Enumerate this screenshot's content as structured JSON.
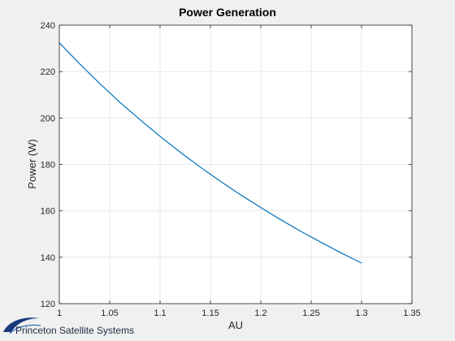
{
  "chart_data": {
    "type": "line",
    "title": "Power Generation",
    "xlabel": "AU",
    "ylabel": "Power (W)",
    "xlim": [
      1,
      1.35
    ],
    "ylim": [
      120,
      240
    ],
    "xticks": [
      1,
      1.05,
      1.1,
      1.15,
      1.2,
      1.25,
      1.3,
      1.35
    ],
    "xtick_labels": [
      "1",
      "1.05",
      "1.1",
      "1.15",
      "1.2",
      "1.25",
      "1.3",
      "1.35"
    ],
    "yticks": [
      120,
      140,
      160,
      180,
      200,
      220,
      240
    ],
    "ytick_labels": [
      "120",
      "140",
      "160",
      "180",
      "200",
      "220",
      "240"
    ],
    "grid": true,
    "series": [
      {
        "color": "#0072bd",
        "x": [
          1.0,
          1.02,
          1.04,
          1.06,
          1.08,
          1.1,
          1.12,
          1.14,
          1.16,
          1.18,
          1.2,
          1.22,
          1.24,
          1.26,
          1.28,
          1.3
        ],
        "y": [
          232.4,
          223.4,
          214.9,
          206.8,
          199.3,
          192.1,
          185.3,
          178.8,
          172.7,
          166.9,
          161.4,
          156.1,
          151.1,
          146.4,
          141.8,
          137.5
        ]
      }
    ]
  },
  "logo": {
    "text": "Princeton Satellite Systems"
  }
}
